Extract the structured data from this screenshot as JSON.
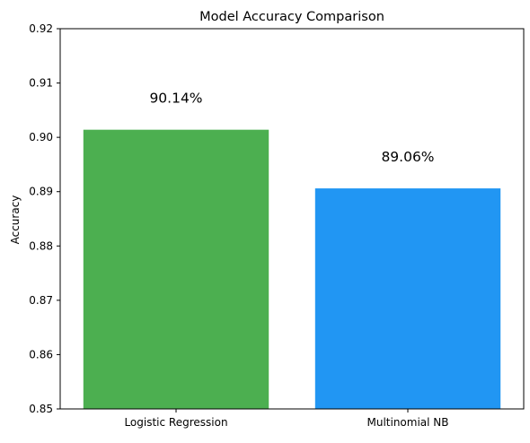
{
  "chart_data": {
    "type": "bar",
    "title": "Model Accuracy Comparison",
    "xlabel": "",
    "ylabel": "Accuracy",
    "categories": [
      "Logistic Regression",
      "Multinomial NB"
    ],
    "values": [
      0.9014,
      0.8906
    ],
    "data_labels": [
      "90.14%",
      "89.06%"
    ],
    "colors": [
      "#4caf50",
      "#2196f3"
    ],
    "ylim": [
      0.85,
      0.92
    ],
    "yticks": [
      0.85,
      0.86,
      0.87,
      0.88,
      0.89,
      0.9,
      0.91,
      0.92
    ],
    "ytick_labels": [
      "0.85",
      "0.86",
      "0.87",
      "0.88",
      "0.89",
      "0.90",
      "0.91",
      "0.92"
    ],
    "grid": false,
    "legend": "none"
  }
}
